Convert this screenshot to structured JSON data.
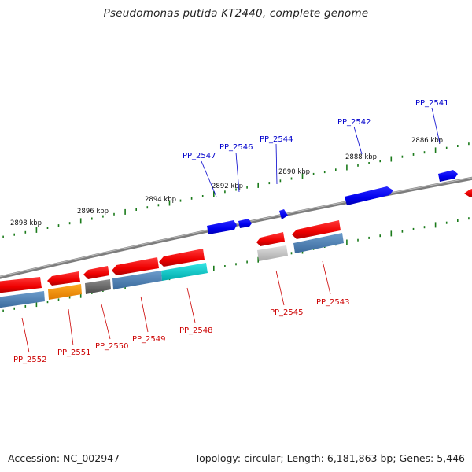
{
  "title": "Pseudomonas putida KT2440, complete genome",
  "footer": {
    "accession": "Accession: NC_002947",
    "summary": "Topology: circular; Length: 6,181,863 bp; Genes: 5,446"
  },
  "colors": {
    "backbone": "#808080",
    "tick": "#1a7a1a",
    "forward_label": "#0000cc",
    "reverse_label": "#cc0000"
  },
  "ticks": [
    {
      "label": "2898 kbp"
    },
    {
      "label": "2896 kbp"
    },
    {
      "label": "2894 kbp"
    },
    {
      "label": "2892 kbp"
    },
    {
      "label": "2890 kbp"
    },
    {
      "label": "2888 kbp"
    },
    {
      "label": "2886 kbp"
    }
  ],
  "forward_genes": [
    {
      "label": "PP_2547"
    },
    {
      "label": "PP_2546"
    },
    {
      "label": "PP_2544"
    },
    {
      "label": "PP_2542"
    },
    {
      "label": "PP_2541"
    }
  ],
  "reverse_genes": [
    {
      "label": "PP_2552"
    },
    {
      "label": "PP_2551"
    },
    {
      "label": "PP_2550"
    },
    {
      "label": "PP_2549"
    },
    {
      "label": "PP_2548"
    },
    {
      "label": "PP_2545"
    },
    {
      "label": "PP_2543"
    }
  ]
}
